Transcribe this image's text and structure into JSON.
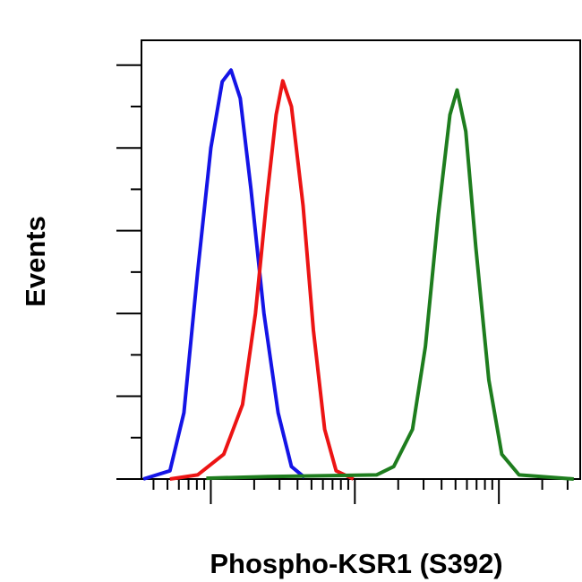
{
  "chart_data": {
    "type": "line",
    "x_label": "Phospho-KSR1 (S392)",
    "y_label": "Events",
    "xscale": "log",
    "xlim": [
      33,
      36700
    ],
    "xticks": [
      100,
      1000,
      10000
    ],
    "ylim": [
      0,
      5.3
    ],
    "yticks": [
      0,
      1,
      2,
      3,
      4,
      5
    ],
    "series": [
      {
        "color": "#1414e6",
        "x": [
          34,
          52,
          65,
          81,
          100,
          120,
          138,
          160,
          190,
          234,
          293,
          363,
          447
        ],
        "values": [
          0,
          0.1,
          0.8,
          2.5,
          4.0,
          4.8,
          4.94,
          4.6,
          3.5,
          2.0,
          0.8,
          0.15,
          0.02
        ]
      },
      {
        "color": "#ec1414",
        "x": [
          52,
          81,
          123,
          166,
          204,
          245,
          284,
          316,
          363,
          437,
          515,
          617,
          741,
          977
        ],
        "values": [
          0,
          0.05,
          0.3,
          0.9,
          2.0,
          3.4,
          4.4,
          4.81,
          4.5,
          3.3,
          1.8,
          0.6,
          0.1,
          0
        ]
      },
      {
        "color": "#1e7d1e",
        "x": [
          93,
          250,
          1413,
          1862,
          2512,
          3090,
          3802,
          4571,
          5129,
          5888,
          6918,
          8511,
          10471,
          13804,
          33113
        ],
        "values": [
          0.01,
          0.03,
          0.05,
          0.15,
          0.6,
          1.6,
          3.2,
          4.4,
          4.7,
          4.2,
          2.8,
          1.2,
          0.3,
          0.05,
          0
        ]
      }
    ]
  }
}
